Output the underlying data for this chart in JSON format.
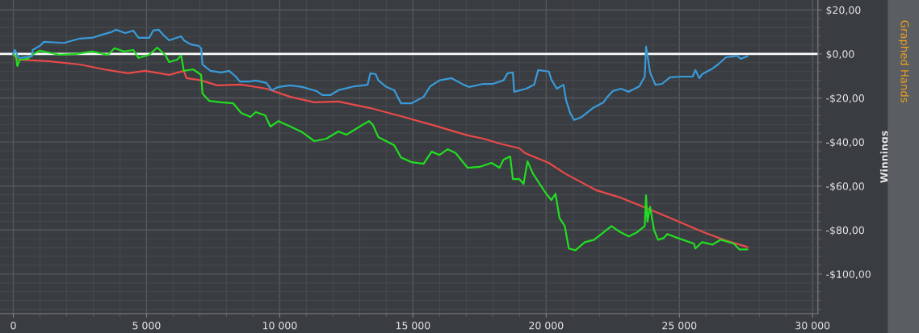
{
  "chart_data": {
    "type": "line",
    "ylabel": "Winnings",
    "annotations": [
      "Graphed Hands"
    ],
    "xlim": [
      -500,
      30200
    ],
    "ylim": [
      -118,
      24.5
    ],
    "xticks": [
      0,
      {
        "value": 5000,
        "label": "5 000"
      },
      {
        "value": 10000,
        "label": "10 000"
      },
      {
        "value": 15000,
        "label": "15 000"
      },
      {
        "value": 20000,
        "label": "20 000"
      },
      {
        "value": 25000,
        "label": "25 000"
      },
      {
        "value": 30000,
        "label": "30 000"
      }
    ],
    "yticks": [
      {
        "value": 20,
        "label": "$20,00"
      },
      {
        "value": 0,
        "label": "$0,00"
      },
      {
        "value": -20,
        "label": "-$20,00"
      },
      {
        "value": -40,
        "label": "-$40,00"
      },
      {
        "value": -60,
        "label": "-$60,00"
      },
      {
        "value": -80,
        "label": "-$80,00"
      },
      {
        "value": -100,
        "label": "-$100,00"
      }
    ],
    "grid": true,
    "legend": false,
    "ref_lines": [
      {
        "axis": "y",
        "value": 0,
        "color": "#ffffff"
      }
    ],
    "series": [
      {
        "color": "#e84a4a",
        "x": [
          0,
          150,
          700,
          1300,
          2500,
          3400,
          4300,
          4950,
          5850,
          6400,
          6500,
          7050,
          7650,
          8550,
          9500,
          10400,
          11300,
          12200,
          13400,
          14650,
          15850,
          17050,
          17650,
          18250,
          19000,
          19200,
          20100,
          20700,
          21900,
          22800,
          23700,
          24650,
          25850,
          26750,
          27550
        ],
        "values": [
          0,
          -2.6,
          -2.9,
          -3.3,
          -4.8,
          -7,
          -8.8,
          -7.7,
          -9.5,
          -7.7,
          -11,
          -12,
          -14.3,
          -13.9,
          -15.8,
          -19.5,
          -22,
          -21.6,
          -24.6,
          -28.6,
          -32.7,
          -37,
          -38.5,
          -40.7,
          -42.9,
          -45,
          -49.5,
          -54.3,
          -62,
          -65.3,
          -69.7,
          -74.5,
          -80.7,
          -84.8,
          -87.7
        ]
      },
      {
        "color": "#22dd22",
        "x": [
          0,
          100,
          150,
          250,
          550,
          700,
          1000,
          1300,
          1750,
          2350,
          2950,
          3550,
          3800,
          4150,
          4500,
          4700,
          5100,
          5400,
          5700,
          5850,
          6150,
          6300,
          6400,
          6750,
          7050,
          7100,
          7350,
          7800,
          8250,
          8550,
          8900,
          9100,
          9450,
          9650,
          9950,
          10400,
          10850,
          11300,
          11750,
          12200,
          12500,
          13100,
          13350,
          13500,
          13700,
          14300,
          14550,
          14950,
          15400,
          15700,
          16000,
          16300,
          16600,
          17050,
          17500,
          17950,
          18250,
          18400,
          18650,
          18750,
          19000,
          19150,
          19300,
          19500,
          20000,
          20200,
          20350,
          20500,
          20700,
          20850,
          21100,
          21450,
          21800,
          22450,
          22750,
          23100,
          23400,
          23700,
          23750,
          23800,
          23900,
          24050,
          24200,
          24400,
          24550,
          24950,
          25550,
          25600,
          25850,
          26250,
          26550,
          27050,
          27250,
          27550
        ],
        "values": [
          0,
          -1.1,
          -5.5,
          -2.6,
          -2.2,
          -0.4,
          1.5,
          0.7,
          -0.4,
          0,
          1.1,
          -0.4,
          2.6,
          1.1,
          1.8,
          -1.8,
          -0.4,
          2.9,
          -0.4,
          -3.7,
          -2.6,
          -0.7,
          -7.7,
          -7,
          -9.5,
          -18,
          -21.3,
          -22,
          -22.4,
          -26.8,
          -28.6,
          -26.4,
          -27.9,
          -33,
          -30.5,
          -33,
          -35.6,
          -39.6,
          -38.5,
          -35.2,
          -36.7,
          -32.3,
          -30.5,
          -32.3,
          -37.8,
          -41.5,
          -47,
          -49.2,
          -49.9,
          -44.4,
          -45.9,
          -43.3,
          -45,
          -51.7,
          -51.3,
          -49.5,
          -51.7,
          -48,
          -46.6,
          -56.9,
          -56.9,
          -59.1,
          -48.8,
          -54.3,
          -63.5,
          -66.4,
          -63.5,
          -74.5,
          -78.2,
          -88.4,
          -89.2,
          -85.5,
          -84.4,
          -78.2,
          -80.7,
          -82.9,
          -81.1,
          -78.2,
          -64.2,
          -76.3,
          -69.4,
          -80,
          -84.4,
          -83.7,
          -81.8,
          -83.7,
          -86.2,
          -88.4,
          -85.5,
          -86.6,
          -84.4,
          -86.2,
          -88.8,
          -88.8
        ]
      },
      {
        "color": "#3a9ad9",
        "x": [
          0,
          60,
          200,
          700,
          727,
          1000,
          1150,
          1900,
          2500,
          2950,
          3400,
          3700,
          3850,
          4200,
          4500,
          4700,
          5100,
          5250,
          5450,
          5650,
          5850,
          6300,
          6400,
          6650,
          6950,
          7050,
          7100,
          7400,
          7800,
          8100,
          8350,
          8500,
          8880,
          9100,
          9500,
          9700,
          9950,
          10400,
          10850,
          11400,
          11600,
          11900,
          12200,
          12800,
          13300,
          13400,
          13600,
          13700,
          14000,
          14300,
          14550,
          14950,
          15400,
          15650,
          16000,
          16450,
          16900,
          17100,
          17650,
          18000,
          18400,
          18550,
          18750,
          18800,
          19250,
          19550,
          19700,
          20100,
          20200,
          20400,
          20650,
          20750,
          20900,
          21050,
          21300,
          21750,
          22150,
          22300,
          22500,
          22800,
          23100,
          23500,
          23700,
          23750,
          23800,
          23900,
          24100,
          24350,
          24650,
          25100,
          25500,
          25600,
          25750,
          25850,
          26250,
          26450,
          26750,
          27050,
          27150,
          27300,
          27550
        ],
        "values": [
          0,
          1.8,
          -1.8,
          -1.1,
          1.8,
          3.7,
          5.5,
          5,
          7,
          7.3,
          9,
          10,
          11,
          9.5,
          10.6,
          7.3,
          7.3,
          10.6,
          11,
          8.4,
          6.2,
          8,
          6.2,
          4.4,
          3.7,
          2.6,
          -4.8,
          -7.7,
          -8.4,
          -7.7,
          -10.3,
          -12.5,
          -12.5,
          -12.1,
          -13.2,
          -16.5,
          -15,
          -14.3,
          -15,
          -17,
          -18.7,
          -18.7,
          -16.5,
          -14.7,
          -14,
          -8.8,
          -9.2,
          -12,
          -15,
          -16.5,
          -22.4,
          -22.4,
          -19.5,
          -14.7,
          -12,
          -11,
          -14,
          -15,
          -13.6,
          -13.6,
          -12,
          -8.8,
          -8.4,
          -17.2,
          -15.8,
          -14,
          -7.3,
          -8,
          -11.7,
          -15.8,
          -14,
          -21,
          -26.8,
          -30,
          -28.9,
          -24.6,
          -22,
          -19.5,
          -16.9,
          -15.8,
          -17.2,
          -14.7,
          -10.3,
          3.3,
          -0.4,
          -8.4,
          -14,
          -13.6,
          -10.6,
          -10.3,
          -10.3,
          -7.3,
          -11,
          -9.2,
          -6.6,
          -4.8,
          -1.5,
          -1.1,
          -0.7,
          -2.2,
          -1.1
        ]
      }
    ]
  }
}
